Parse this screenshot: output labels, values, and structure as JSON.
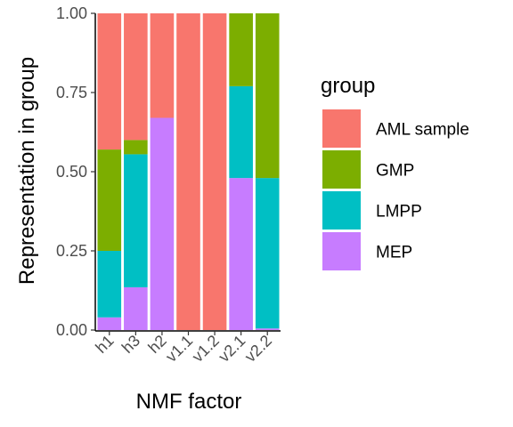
{
  "chart_data": {
    "type": "bar",
    "stacked": true,
    "xlabel": "NMF factor",
    "ylabel": "Representation in group",
    "ylim": [
      0,
      1
    ],
    "yticks": [
      "0.00",
      "0.25",
      "0.50",
      "0.75",
      "1.00"
    ],
    "categories": [
      "h1",
      "h3",
      "h2",
      "v1.1",
      "v1.2",
      "v2.1",
      "v2.2"
    ],
    "legend": {
      "title": "group",
      "position": "right"
    },
    "series": [
      {
        "name": "AML sample",
        "color": "#F8766D",
        "values": [
          0.43,
          0.4,
          0.33,
          1.0,
          1.0,
          0.0,
          0.0
        ]
      },
      {
        "name": "GMP",
        "color": "#7CAE00",
        "values": [
          0.32,
          0.045,
          0.0,
          0.0,
          0.0,
          0.23,
          0.52
        ]
      },
      {
        "name": "LMPP",
        "color": "#00BFC4",
        "values": [
          0.21,
          0.42,
          0.0,
          0.0,
          0.0,
          0.29,
          0.475
        ]
      },
      {
        "name": "MEP",
        "color": "#C77CFF",
        "values": [
          0.04,
          0.135,
          0.67,
          0.0,
          0.0,
          0.48,
          0.005
        ]
      }
    ]
  }
}
